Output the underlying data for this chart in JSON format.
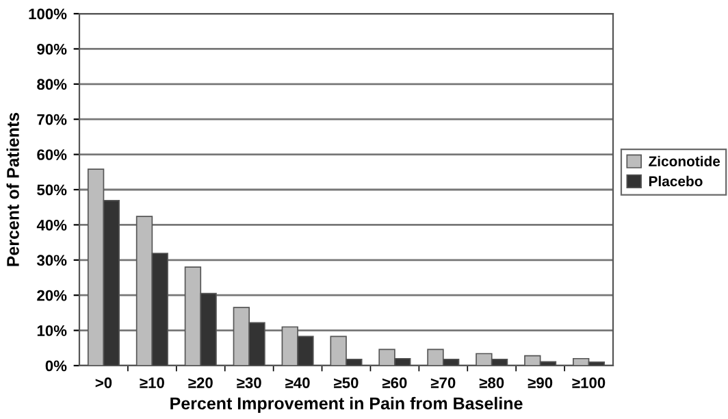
{
  "chart_data": {
    "type": "bar",
    "xlabel": "Percent Improvement in Pain from Baseline",
    "ylabel": "Percent of Patients",
    "categories": [
      ">0",
      "≥10",
      "≥20",
      "≥30",
      "≥40",
      "≥50",
      "≥60",
      "≥70",
      "≥80",
      "≥90",
      "≥100"
    ],
    "series": [
      {
        "name": "Ziconotide",
        "color": "#bcbcbc",
        "values": [
          55.8,
          42.4,
          28,
          16.5,
          11,
          8.3,
          4.6,
          4.6,
          3.4,
          2.8,
          2.0
        ]
      },
      {
        "name": "Placebo",
        "color": "#333333",
        "values": [
          46.9,
          31.9,
          20.5,
          12.2,
          8.3,
          1.8,
          2.0,
          1.8,
          1.8,
          1.1,
          1.0
        ]
      }
    ],
    "ylim": [
      0,
      100
    ],
    "yticks": [
      {
        "value": 0,
        "label": "0%"
      },
      {
        "value": 10,
        "label": "10%"
      },
      {
        "value": 20,
        "label": "20%"
      },
      {
        "value": 30,
        "label": "30%"
      },
      {
        "value": 40,
        "label": "40%"
      },
      {
        "value": 50,
        "label": "50%"
      },
      {
        "value": 60,
        "label": "60%"
      },
      {
        "value": 70,
        "label": "70%"
      },
      {
        "value": 80,
        "label": "80%"
      },
      {
        "value": 90,
        "label": "90%"
      },
      {
        "value": 100,
        "label": "100%"
      }
    ],
    "grid": "y",
    "legend": "right"
  }
}
